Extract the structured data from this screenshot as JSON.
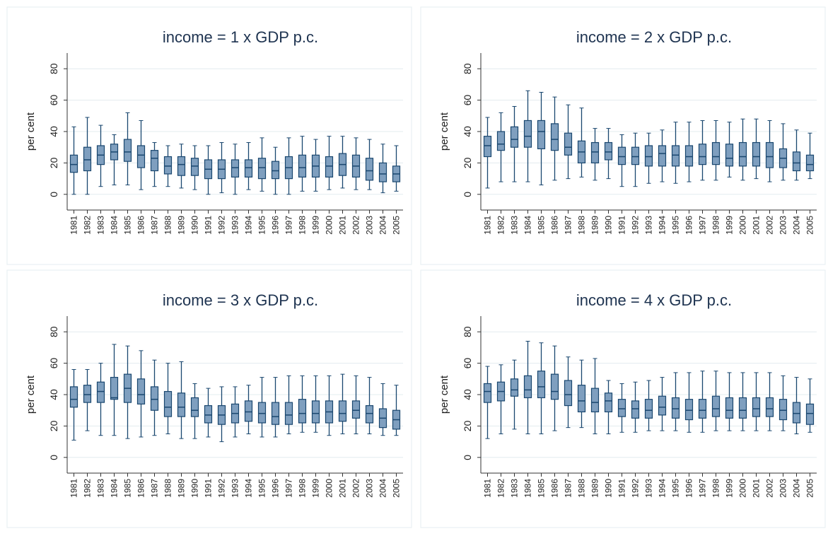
{
  "chart_data": [
    {
      "type": "box",
      "title": "income = 1 x GDP p.c.",
      "y_label": "per cent",
      "color": "#7f9fbf",
      "ylim": [
        -10,
        90
      ],
      "yticks": [
        0,
        20,
        40,
        60,
        80
      ],
      "grid": true,
      "categories": [
        "1981",
        "1982",
        "1983",
        "1984",
        "1985",
        "1986",
        "1987",
        "1988",
        "1989",
        "1990",
        "1991",
        "1992",
        "1993",
        "1994",
        "1995",
        "1996",
        "1997",
        "1998",
        "1999",
        "2000",
        "2001",
        "2002",
        "2003",
        "2004",
        "2005"
      ],
      "min": [
        0,
        0,
        5,
        6,
        6,
        3,
        5,
        5,
        4,
        3,
        0,
        1,
        0,
        3,
        2,
        0,
        0,
        2,
        2,
        3,
        4,
        3,
        3,
        1,
        2
      ],
      "q1": [
        14,
        15,
        19,
        22,
        21,
        17,
        15,
        13,
        12,
        12,
        10,
        10,
        11,
        11,
        10,
        10,
        10,
        11,
        11,
        11,
        12,
        11,
        9,
        8,
        8
      ],
      "median": [
        19,
        22,
        25,
        27,
        27,
        25,
        23,
        18,
        19,
        18,
        16,
        16,
        17,
        17,
        17,
        15,
        17,
        17,
        18,
        18,
        19,
        18,
        15,
        13,
        13
      ],
      "q3": [
        25,
        30,
        31,
        32,
        35,
        31,
        28,
        24,
        24,
        23,
        22,
        22,
        22,
        22,
        23,
        21,
        24,
        25,
        25,
        24,
        26,
        25,
        23,
        20,
        18
      ],
      "max": [
        43,
        49,
        44,
        38,
        52,
        47,
        33,
        31,
        32,
        31,
        31,
        33,
        32,
        33,
        36,
        30,
        36,
        37,
        35,
        37,
        37,
        36,
        35,
        32,
        31
      ]
    },
    {
      "type": "box",
      "title": "income = 2 x GDP p.c.",
      "y_label": "per cent",
      "color": "#7f9fbf",
      "ylim": [
        -10,
        90
      ],
      "yticks": [
        0,
        20,
        40,
        60,
        80
      ],
      "grid": true,
      "categories": [
        "1981",
        "1982",
        "1983",
        "1984",
        "1985",
        "1986",
        "1987",
        "1988",
        "1989",
        "1990",
        "1991",
        "1992",
        "1993",
        "1994",
        "1995",
        "1996",
        "1997",
        "1998",
        "1999",
        "2000",
        "2001",
        "2002",
        "2003",
        "2004",
        "2005"
      ],
      "min": [
        4,
        8,
        8,
        8,
        6,
        9,
        10,
        11,
        9,
        10,
        5,
        5,
        7,
        8,
        7,
        8,
        9,
        9,
        11,
        9,
        10,
        8,
        9,
        9,
        10
      ],
      "q1": [
        24,
        28,
        30,
        30,
        29,
        28,
        25,
        20,
        20,
        22,
        19,
        19,
        18,
        18,
        18,
        18,
        19,
        19,
        18,
        18,
        18,
        17,
        17,
        15,
        15
      ],
      "median": [
        31,
        32,
        35,
        37,
        40,
        35,
        30,
        27,
        27,
        27,
        24,
        24,
        24,
        26,
        25,
        24,
        24,
        24,
        23,
        24,
        24,
        24,
        23,
        20,
        19
      ],
      "q3": [
        37,
        40,
        43,
        47,
        47,
        45,
        39,
        34,
        33,
        33,
        30,
        30,
        31,
        31,
        31,
        31,
        32,
        33,
        32,
        33,
        33,
        33,
        29,
        27,
        25
      ],
      "max": [
        49,
        52,
        56,
        66,
        65,
        62,
        57,
        55,
        42,
        42,
        38,
        39,
        39,
        41,
        46,
        46,
        47,
        47,
        46,
        48,
        48,
        47,
        45,
        41,
        39
      ]
    },
    {
      "type": "box",
      "title": "income = 3 x GDP p.c.",
      "y_label": "per cent",
      "color": "#7f9fbf",
      "ylim": [
        -10,
        90
      ],
      "yticks": [
        0,
        20,
        40,
        60,
        80
      ],
      "grid": true,
      "categories": [
        "1981",
        "1982",
        "1983",
        "1984",
        "1985",
        "1986",
        "1987",
        "1988",
        "1989",
        "1990",
        "1991",
        "1992",
        "1993",
        "1994",
        "1995",
        "1996",
        "1997",
        "1998",
        "1999",
        "2000",
        "2001",
        "2002",
        "2003",
        "2004",
        "2005"
      ],
      "min": [
        11,
        17,
        14,
        14,
        12,
        13,
        14,
        15,
        12,
        12,
        13,
        10,
        13,
        15,
        13,
        13,
        15,
        16,
        16,
        14,
        15,
        15,
        15,
        14,
        14
      ],
      "q1": [
        32,
        35,
        35,
        37,
        35,
        34,
        30,
        26,
        26,
        26,
        22,
        21,
        22,
        23,
        22,
        21,
        21,
        22,
        22,
        22,
        23,
        25,
        22,
        19,
        18
      ],
      "median": [
        37,
        40,
        42,
        38,
        44,
        40,
        37,
        32,
        32,
        30,
        27,
        27,
        28,
        29,
        28,
        26,
        27,
        28,
        28,
        29,
        28,
        30,
        28,
        25,
        24
      ],
      "q3": [
        45,
        46,
        48,
        51,
        53,
        50,
        45,
        42,
        41,
        38,
        33,
        33,
        34,
        36,
        35,
        35,
        35,
        37,
        36,
        36,
        36,
        36,
        33,
        31,
        30
      ],
      "max": [
        56,
        56,
        60,
        72,
        71,
        68,
        62,
        60,
        61,
        47,
        44,
        45,
        45,
        46,
        51,
        51,
        52,
        52,
        52,
        52,
        53,
        52,
        51,
        47,
        46
      ]
    },
    {
      "type": "box",
      "title": "income = 4 x GDP p.c.",
      "y_label": "per cent",
      "color": "#7f9fbf",
      "ylim": [
        -10,
        90
      ],
      "yticks": [
        0,
        20,
        40,
        60,
        80
      ],
      "grid": true,
      "categories": [
        "1981",
        "1982",
        "1983",
        "1984",
        "1985",
        "1986",
        "1987",
        "1988",
        "1989",
        "1990",
        "1991",
        "1992",
        "1993",
        "1994",
        "1995",
        "1996",
        "1997",
        "1998",
        "1999",
        "2000",
        "2001",
        "2002",
        "2003",
        "2004",
        "2005"
      ],
      "min": [
        12,
        15,
        18,
        15,
        15,
        17,
        19,
        19,
        15,
        15,
        16,
        16,
        17,
        17,
        17,
        16,
        16,
        17,
        17,
        17,
        17,
        17,
        17,
        15,
        16
      ],
      "q1": [
        35,
        36,
        39,
        38,
        38,
        37,
        33,
        29,
        29,
        29,
        26,
        25,
        25,
        27,
        25,
        24,
        25,
        26,
        25,
        25,
        26,
        26,
        24,
        22,
        21
      ],
      "median": [
        42,
        42,
        43,
        43,
        45,
        42,
        40,
        36,
        35,
        36,
        31,
        31,
        30,
        32,
        31,
        30,
        30,
        31,
        30,
        30,
        31,
        31,
        30,
        28,
        28
      ],
      "q3": [
        47,
        48,
        50,
        52,
        55,
        53,
        49,
        46,
        44,
        41,
        37,
        36,
        37,
        39,
        38,
        37,
        37,
        39,
        38,
        38,
        38,
        38,
        37,
        35,
        34
      ],
      "max": [
        58,
        59,
        62,
        74,
        73,
        71,
        64,
        62,
        63,
        49,
        47,
        48,
        49,
        51,
        54,
        54,
        55,
        55,
        54,
        54,
        54,
        54,
        52,
        51,
        50
      ]
    }
  ]
}
